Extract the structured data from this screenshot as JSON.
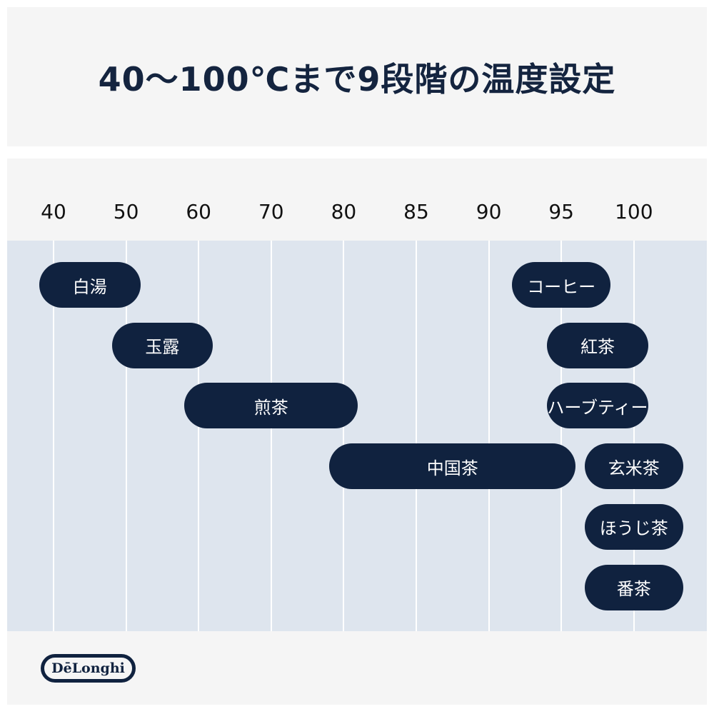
{
  "title": "40〜100℃まで9段階の温度設定",
  "brand": "DēLonghi",
  "colors": {
    "bar": "#10223f",
    "band": "#dee5ee",
    "panel": "#f5f5f5"
  },
  "chart_data": {
    "type": "range-bar",
    "x_ticks": [
      40,
      50,
      60,
      70,
      80,
      85,
      90,
      95,
      100
    ],
    "grid": true,
    "rows": [
      [
        {
          "label": "白湯",
          "range": [
            40,
            50
          ]
        },
        {
          "label": "コーヒー",
          "range": [
            95,
            95
          ]
        }
      ],
      [
        {
          "label": "玉露",
          "range": [
            50,
            60
          ]
        },
        {
          "label": "紅茶",
          "range": [
            95,
            100
          ]
        }
      ],
      [
        {
          "label": "煎茶",
          "range": [
            60,
            80
          ]
        },
        {
          "label": "ハーブティー",
          "range": [
            95,
            100
          ]
        }
      ],
      [
        {
          "label": "中国茶",
          "range": [
            80,
            95
          ]
        },
        {
          "label": "玄米茶",
          "range": [
            100,
            100
          ]
        }
      ],
      [
        {
          "label": "ほうじ茶",
          "range": [
            100,
            100
          ]
        }
      ],
      [
        {
          "label": "番茶",
          "range": [
            100,
            100
          ]
        }
      ]
    ]
  }
}
